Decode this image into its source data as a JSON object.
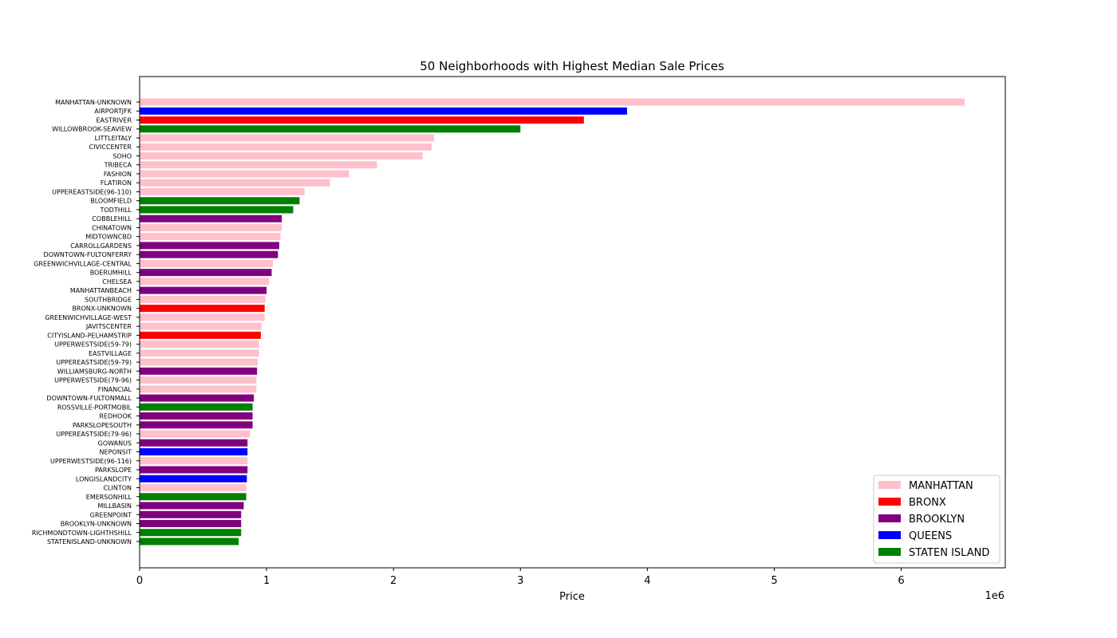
{
  "chart_data": {
    "type": "bar",
    "orientation": "horizontal",
    "title": "50 Neighborhoods with Highest Median Sale Prices",
    "xlabel": "Price",
    "ylabel": "",
    "x_scale_label": "1e6",
    "xlim": [
      0,
      6820000
    ],
    "xticks": [
      0,
      1,
      2,
      3,
      4,
      5,
      6
    ],
    "legend_position": "lower-right",
    "grid": false,
    "legend": [
      {
        "name": "MANHATTAN",
        "color": "#FFC0CB"
      },
      {
        "name": "BRONX",
        "color": "#FF0000"
      },
      {
        "name": "BROOKLYN",
        "color": "#800080"
      },
      {
        "name": "QUEENS",
        "color": "#0000FF"
      },
      {
        "name": "STATEN ISLAND",
        "color": "#008000"
      }
    ],
    "categories": [
      "MANHATTAN-UNKNOWN",
      "AIRPORTJFK",
      "EASTRIVER",
      "WILLOWBROOK-SEAVIEW",
      "LITTLEITALY",
      "CIVICCENTER",
      "SOHO",
      "TRIBECA",
      "FASHION",
      "FLATIRON",
      "UPPEREASTSIDE(96-110)",
      "BLOOMFIELD",
      "TODTHILL",
      "COBBLEHILL",
      "CHINATOWN",
      "MIDTOWNCBD",
      "CARROLLGARDENS",
      "DOWNTOWN-FULTONFERRY",
      "GREENWICHVILLAGE-CENTRAL",
      "BOERUMHILL",
      "CHELSEA",
      "MANHATTANBEACH",
      "SOUTHBRIDGE",
      "BRONX-UNKNOWN",
      "GREENWICHVILLAGE-WEST",
      "JAVITSCENTER",
      "CITYISLAND-PELHAMSTRIP",
      "UPPERWESTSIDE(59-79)",
      "EASTVILLAGE",
      "UPPEREASTSIDE(59-79)",
      "WILLIAMSBURG-NORTH",
      "UPPERWESTSIDE(79-96)",
      "FINANCIAL",
      "DOWNTOWN-FULTONMALL",
      "ROSSVILLE-PORTMOBIL",
      "REDHOOK",
      "PARKSLOPESOUTH",
      "UPPEREASTSIDE(79-96)",
      "GOWANUS",
      "NEPONSIT",
      "UPPERWESTSIDE(96-116)",
      "PARKSLOPE",
      "LONGISLANDCITY",
      "CLINTON",
      "EMERSONHILL",
      "MILLBASIN",
      "GREENPOINT",
      "BROOKLYN-UNKNOWN",
      "RICHMONDTOWN-LIGHTHSHILL",
      "STATENISLAND-UNKNOWN"
    ],
    "values": [
      6500000,
      3840000,
      3500000,
      3000000,
      2320000,
      2300000,
      2230000,
      1870000,
      1650000,
      1500000,
      1300000,
      1260000,
      1210000,
      1120000,
      1120000,
      1110000,
      1100000,
      1090000,
      1050000,
      1040000,
      1020000,
      1000000,
      990000,
      985000,
      985000,
      960000,
      955000,
      940000,
      940000,
      930000,
      925000,
      920000,
      920000,
      900000,
      890000,
      890000,
      890000,
      870000,
      850000,
      850000,
      850000,
      850000,
      845000,
      840000,
      840000,
      820000,
      800000,
      800000,
      800000,
      780000
    ],
    "borough": [
      "MANHATTAN",
      "QUEENS",
      "BRONX",
      "STATEN ISLAND",
      "MANHATTAN",
      "MANHATTAN",
      "MANHATTAN",
      "MANHATTAN",
      "MANHATTAN",
      "MANHATTAN",
      "MANHATTAN",
      "STATEN ISLAND",
      "STATEN ISLAND",
      "BROOKLYN",
      "MANHATTAN",
      "MANHATTAN",
      "BROOKLYN",
      "BROOKLYN",
      "MANHATTAN",
      "BROOKLYN",
      "MANHATTAN",
      "BROOKLYN",
      "MANHATTAN",
      "BRONX",
      "MANHATTAN",
      "MANHATTAN",
      "BRONX",
      "MANHATTAN",
      "MANHATTAN",
      "MANHATTAN",
      "BROOKLYN",
      "MANHATTAN",
      "MANHATTAN",
      "BROOKLYN",
      "STATEN ISLAND",
      "BROOKLYN",
      "BROOKLYN",
      "MANHATTAN",
      "BROOKLYN",
      "QUEENS",
      "MANHATTAN",
      "BROOKLYN",
      "QUEENS",
      "MANHATTAN",
      "STATEN ISLAND",
      "BROOKLYN",
      "BROOKLYN",
      "BROOKLYN",
      "STATEN ISLAND",
      "STATEN ISLAND"
    ]
  }
}
